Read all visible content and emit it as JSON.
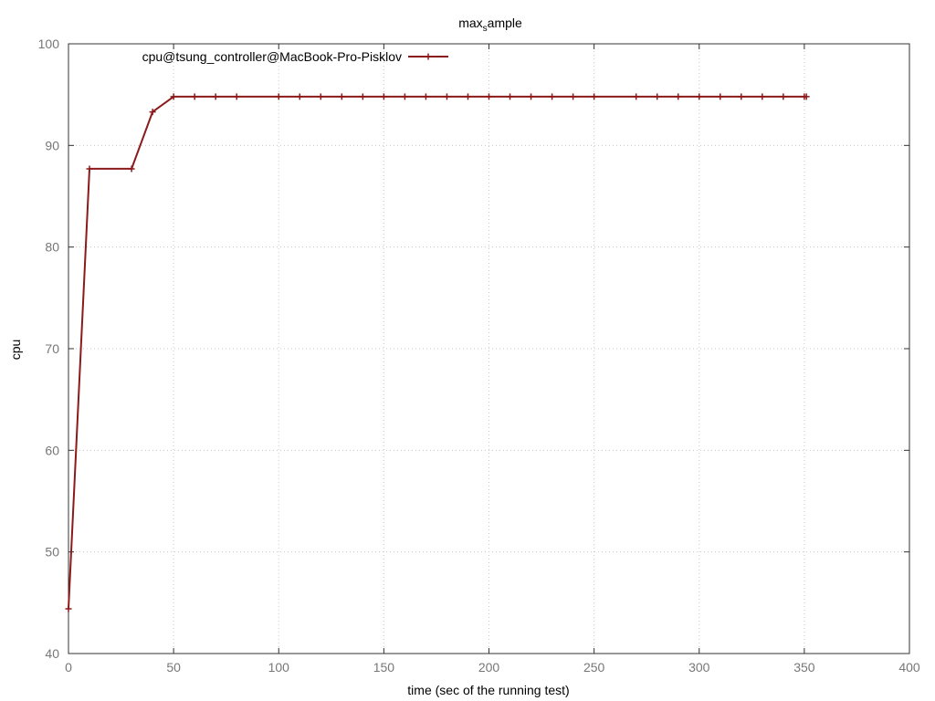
{
  "chart_data": {
    "type": "line",
    "title": {
      "base": "max",
      "sub": "s",
      "rest": "ample"
    },
    "xlabel": "time (sec of the running test)",
    "ylabel": "cpu",
    "xlim": [
      0,
      400
    ],
    "ylim": [
      40,
      100
    ],
    "xticks": [
      0,
      50,
      100,
      150,
      200,
      250,
      300,
      350,
      400
    ],
    "yticks": [
      40,
      50,
      60,
      70,
      80,
      90,
      100
    ],
    "grid": true,
    "legend_position": "top-left",
    "series": [
      {
        "name": "cpu@tsung_controller@MacBook-Pro-Pisklov",
        "color": "#8b1a1a",
        "marker": "plus",
        "x": [
          0,
          10,
          30,
          40,
          50,
          60,
          70,
          80,
          100,
          110,
          120,
          130,
          140,
          150,
          160,
          170,
          180,
          190,
          200,
          210,
          220,
          230,
          240,
          250,
          270,
          280,
          290,
          300,
          310,
          320,
          330,
          340,
          350,
          351
        ],
        "y": [
          44.4,
          87.7,
          87.7,
          93.3,
          94.8,
          94.8,
          94.8,
          94.8,
          94.8,
          94.8,
          94.8,
          94.8,
          94.8,
          94.8,
          94.8,
          94.8,
          94.8,
          94.8,
          94.8,
          94.8,
          94.8,
          94.8,
          94.8,
          94.8,
          94.8,
          94.8,
          94.8,
          94.8,
          94.8,
          94.8,
          94.8,
          94.8,
          94.8,
          94.8
        ]
      }
    ]
  }
}
